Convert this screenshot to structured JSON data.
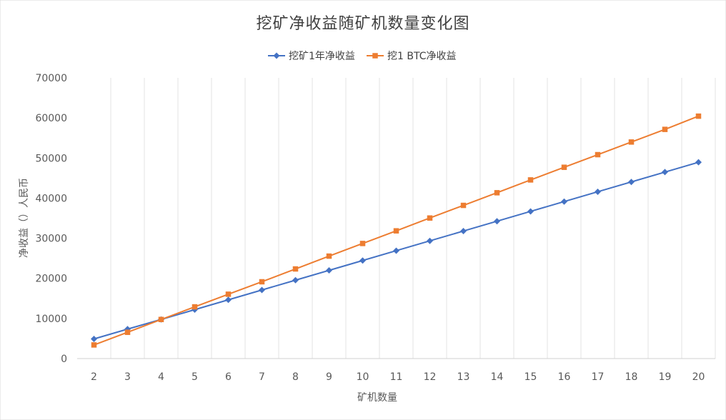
{
  "chart_data": {
    "type": "line",
    "title": "挖矿净收益随矿机数量变化图",
    "xlabel": "矿机数量",
    "ylabel": "净收益（）人民币",
    "x": [
      2,
      3,
      4,
      5,
      6,
      7,
      8,
      9,
      10,
      11,
      12,
      13,
      14,
      15,
      16,
      17,
      18,
      19,
      20
    ],
    "ylim": [
      0,
      70000
    ],
    "yticks": [
      0,
      10000,
      20000,
      30000,
      40000,
      50000,
      60000,
      70000
    ],
    "grid": "vertical",
    "legend_position": "top",
    "series": [
      {
        "name": "挖矿1年净收益",
        "color": "#4472C4",
        "marker": "diamond",
        "values": [
          4900,
          7350,
          9750,
          12200,
          14650,
          17100,
          19550,
          22000,
          24450,
          26900,
          29350,
          31800,
          34250,
          36700,
          39150,
          41600,
          44050,
          46500,
          48950
        ]
      },
      {
        "name": "挖1 BTC净收益",
        "color": "#ED7D31",
        "marker": "square",
        "values": [
          3400,
          6550,
          9750,
          12900,
          16050,
          19150,
          22350,
          25550,
          28700,
          31850,
          35050,
          38200,
          41350,
          44550,
          47700,
          50850,
          54000,
          57150,
          60450
        ]
      }
    ]
  }
}
